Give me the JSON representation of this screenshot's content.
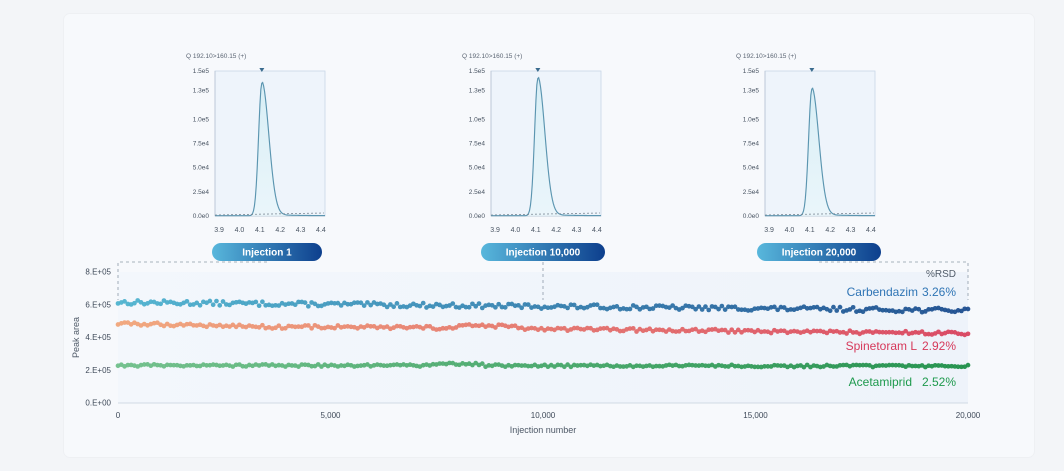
{
  "chart_data": [
    {
      "type": "line",
      "title": "Q 192.10>160.15 (+)",
      "chromatogram": {
        "x_ticks": [
          3.9,
          4.0,
          4.1,
          4.2,
          4.3,
          4.4
        ],
        "y_ticks": [
          "0.0e0",
          "2.5e4",
          "5.0e4",
          "7.5e4",
          "1.0e5",
          "1.3e5",
          "1.5e5"
        ],
        "peak_rt": 4.11,
        "peak_height": 137000
      },
      "button_label": "Injection 1"
    },
    {
      "type": "line",
      "title": "Q 192.10>160.15 (+)",
      "chromatogram": {
        "x_ticks": [
          3.9,
          4.0,
          4.1,
          4.2,
          4.3,
          4.4
        ],
        "y_ticks": [
          "0.0e0",
          "2.5e4",
          "5.0e4",
          "7.5e4",
          "1.0e5",
          "1.3e5",
          "1.5e5"
        ],
        "peak_rt": 4.11,
        "peak_height": 142000
      },
      "button_label": "Injection 10,000"
    },
    {
      "type": "line",
      "title": "Q 192.10>160.15 (+)",
      "chromatogram": {
        "x_ticks": [
          3.9,
          4.0,
          4.1,
          4.2,
          4.3,
          4.4
        ],
        "y_ticks": [
          "0.0e0",
          "2.5e4",
          "5.0e4",
          "7.5e4",
          "1.0e5",
          "1.3e5",
          "1.5e5"
        ],
        "peak_rt": 4.11,
        "peak_height": 131000
      },
      "button_label": "Injection 20,000"
    },
    {
      "type": "scatter",
      "xlabel": "Injection number",
      "ylabel": "Peak area",
      "xlim": [
        0,
        20000
      ],
      "ylim": [
        0,
        800000
      ],
      "x_ticks": [
        "0",
        "5,000",
        "10,000",
        "15,000",
        "20,000"
      ],
      "y_ticks": [
        "0.E+00",
        "2.E+05",
        "4.E+05",
        "6.E+05",
        "8.E+05"
      ],
      "rsd_header": "%RSD",
      "series": [
        {
          "name": "Carbendazim",
          "rsd": "3.26%",
          "mean_start": 615000,
          "mean_end": 565000,
          "jitter": 12000,
          "color_start": "#4fb3cf",
          "color_end": "#1c4d8f"
        },
        {
          "name": "Spinetoram L",
          "rsd": "2.92%",
          "mean_start": 478000,
          "mean_end": 425000,
          "jitter": 9000,
          "color_start": "#f0a57a",
          "color_end": "#d8445f"
        },
        {
          "name": "Acetamiprid",
          "rsd": "2.52%",
          "mean_start": 230000,
          "mean_end": 225000,
          "jitter": 6000,
          "color_start": "#6fbf8a",
          "color_end": "#1f8f4a"
        }
      ]
    }
  ]
}
